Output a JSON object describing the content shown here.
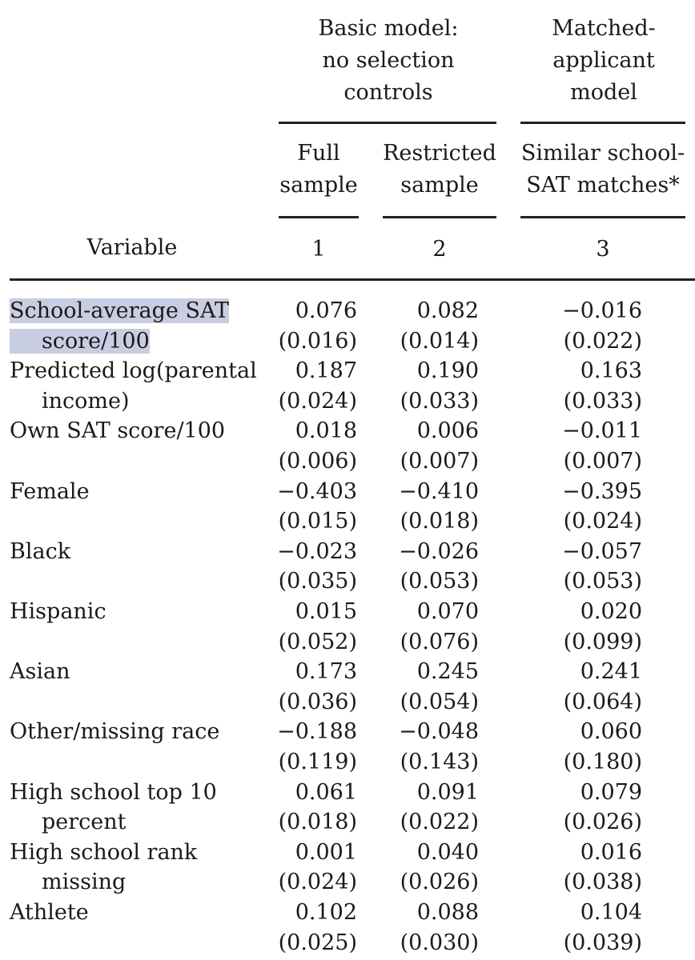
{
  "header": {
    "group1": [
      "Basic model:",
      "no selection",
      "controls"
    ],
    "group2": [
      "Matched-",
      "applicant",
      "model"
    ],
    "col1": [
      "Full",
      "sample"
    ],
    "col2": [
      "Restricted",
      "sample"
    ],
    "col3": [
      "Similar school-",
      "SAT matches*"
    ],
    "variable": "Variable",
    "n1": "1",
    "n2": "2",
    "n3": "3"
  },
  "rows": [
    {
      "label": [
        "School-average SAT",
        "score/100"
      ],
      "coef": [
        "0.076",
        "0.082",
        "−0.016"
      ],
      "se": [
        "(0.016)",
        "(0.014)",
        "(0.022)"
      ],
      "highlight": true
    },
    {
      "label": [
        "Predicted log(parental",
        "income)"
      ],
      "coef": [
        "0.187",
        "0.190",
        "0.163"
      ],
      "se": [
        "(0.024)",
        "(0.033)",
        "(0.033)"
      ]
    },
    {
      "label": [
        "Own SAT score/100"
      ],
      "coef": [
        "0.018",
        "0.006",
        "−0.011"
      ],
      "se": [
        "(0.006)",
        "(0.007)",
        "(0.007)"
      ]
    },
    {
      "label": [
        "Female"
      ],
      "coef": [
        "−0.403",
        "−0.410",
        "−0.395"
      ],
      "se": [
        "(0.015)",
        "(0.018)",
        "(0.024)"
      ]
    },
    {
      "label": [
        "Black"
      ],
      "coef": [
        "−0.023",
        "−0.026",
        "−0.057"
      ],
      "se": [
        "(0.035)",
        "(0.053)",
        "(0.053)"
      ]
    },
    {
      "label": [
        "Hispanic"
      ],
      "coef": [
        "0.015",
        "0.070",
        "0.020"
      ],
      "se": [
        "(0.052)",
        "(0.076)",
        "(0.099)"
      ]
    },
    {
      "label": [
        "Asian"
      ],
      "coef": [
        "0.173",
        "0.245",
        "0.241"
      ],
      "se": [
        "(0.036)",
        "(0.054)",
        "(0.064)"
      ]
    },
    {
      "label": [
        "Other/missing race"
      ],
      "coef": [
        "−0.188",
        "−0.048",
        "0.060"
      ],
      "se": [
        "(0.119)",
        "(0.143)",
        "(0.180)"
      ]
    },
    {
      "label": [
        "High school top 10",
        "percent"
      ],
      "coef": [
        "0.061",
        "0.091",
        "0.079"
      ],
      "se": [
        "(0.018)",
        "(0.022)",
        "(0.026)"
      ]
    },
    {
      "label": [
        "High school rank",
        "missing"
      ],
      "coef": [
        "0.001",
        "0.040",
        "0.016"
      ],
      "se": [
        "(0.024)",
        "(0.026)",
        "(0.038)"
      ]
    },
    {
      "label": [
        "Athlete"
      ],
      "coef": [
        "0.102",
        "0.088",
        "0.104"
      ],
      "se": [
        "(0.025)",
        "(0.030)",
        "(0.039)"
      ]
    }
  ]
}
